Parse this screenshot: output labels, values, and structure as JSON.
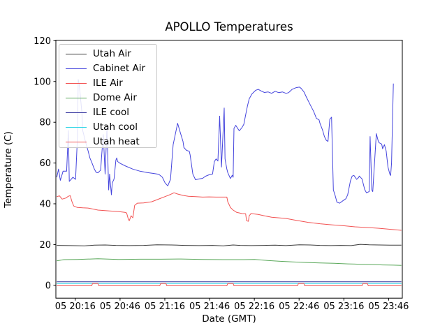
{
  "window": {
    "background": "#ffffff"
  },
  "chart_data": {
    "type": "line",
    "title": "APOLLO Temperatures",
    "xlabel": "Date (GMT)",
    "ylabel": "Temperature (C)",
    "grid": false,
    "legend_position": "upper left",
    "x_unit": "decimal hours GMT on day 05",
    "xlim": [
      20.05,
      23.92
    ],
    "ylim": [
      -6.3,
      120.3
    ],
    "x_ticks": [
      {
        "value": 20.267,
        "label": "05 20:16"
      },
      {
        "value": 20.767,
        "label": "05 20:46"
      },
      {
        "value": 21.267,
        "label": "05 21:16"
      },
      {
        "value": 21.767,
        "label": "05 21:46"
      },
      {
        "value": 22.267,
        "label": "05 22:16"
      },
      {
        "value": 22.767,
        "label": "05 22:46"
      },
      {
        "value": 23.267,
        "label": "05 23:16"
      },
      {
        "value": 23.767,
        "label": "05 23:46"
      }
    ],
    "y_ticks": [
      {
        "value": 0,
        "label": "0"
      },
      {
        "value": 20,
        "label": "20"
      },
      {
        "value": 40,
        "label": "40"
      },
      {
        "value": 60,
        "label": "60"
      },
      {
        "value": 80,
        "label": "80"
      },
      {
        "value": 100,
        "label": "100"
      },
      {
        "value": 120,
        "label": "120"
      }
    ],
    "series": [
      {
        "name": "Utah Air",
        "color": "#3a3a3a",
        "points": [
          [
            20.06,
            19.6
          ],
          [
            20.21,
            19.5
          ],
          [
            20.37,
            19.4
          ],
          [
            20.48,
            19.7
          ],
          [
            20.6,
            19.8
          ],
          [
            20.72,
            19.6
          ],
          [
            20.87,
            19.5
          ],
          [
            21.03,
            19.6
          ],
          [
            21.18,
            19.9
          ],
          [
            21.34,
            19.8
          ],
          [
            21.49,
            19.6
          ],
          [
            21.65,
            19.5
          ],
          [
            21.8,
            19.6
          ],
          [
            21.92,
            19.4
          ],
          [
            22.03,
            19.8
          ],
          [
            22.11,
            19.6
          ],
          [
            22.23,
            19.5
          ],
          [
            22.38,
            19.6
          ],
          [
            22.5,
            19.7
          ],
          [
            22.62,
            19.5
          ],
          [
            22.77,
            19.9
          ],
          [
            22.89,
            19.8
          ],
          [
            23.0,
            19.6
          ],
          [
            23.12,
            19.5
          ],
          [
            23.23,
            19.6
          ],
          [
            23.35,
            19.5
          ],
          [
            23.45,
            20.1
          ],
          [
            23.55,
            19.9
          ],
          [
            23.66,
            19.8
          ],
          [
            23.78,
            19.7
          ],
          [
            23.91,
            19.7
          ]
        ]
      },
      {
        "name": "Cabinet Air",
        "color": "#4444dd",
        "points": [
          [
            20.06,
            53
          ],
          [
            20.08,
            57
          ],
          [
            20.1,
            51.5
          ],
          [
            20.13,
            56
          ],
          [
            20.17,
            56
          ],
          [
            20.19,
            76
          ],
          [
            20.2,
            51
          ],
          [
            20.24,
            53
          ],
          [
            20.27,
            52
          ],
          [
            20.29,
            72
          ],
          [
            20.3,
            101
          ],
          [
            20.31,
            99
          ],
          [
            20.34,
            85
          ],
          [
            20.35,
            76
          ],
          [
            20.38,
            70.6
          ],
          [
            20.41,
            66
          ],
          [
            20.43,
            62.5
          ],
          [
            20.45,
            60.4
          ],
          [
            20.48,
            57
          ],
          [
            20.5,
            55.4
          ],
          [
            20.52,
            55.2
          ],
          [
            20.55,
            56.5
          ],
          [
            20.56,
            63
          ],
          [
            20.58,
            74
          ],
          [
            20.6,
            54.6
          ],
          [
            20.62,
            77.8
          ],
          [
            20.64,
            46.8
          ],
          [
            20.65,
            54.6
          ],
          [
            20.67,
            44.4
          ],
          [
            20.68,
            50.2
          ],
          [
            20.7,
            52.2
          ],
          [
            20.72,
            61.4
          ],
          [
            20.73,
            62.5
          ],
          [
            20.74,
            60.7
          ],
          [
            20.77,
            59.8
          ],
          [
            20.83,
            58.5
          ],
          [
            20.91,
            57
          ],
          [
            20.99,
            56
          ],
          [
            21.07,
            55.3
          ],
          [
            21.14,
            54.9
          ],
          [
            21.2,
            54.5
          ],
          [
            21.24,
            53
          ],
          [
            21.27,
            50.2
          ],
          [
            21.3,
            48.8
          ],
          [
            21.33,
            52
          ],
          [
            21.36,
            69
          ],
          [
            21.41,
            79.5
          ],
          [
            21.44,
            75
          ],
          [
            21.47,
            70.6
          ],
          [
            21.48,
            67.6
          ],
          [
            21.51,
            66.2
          ],
          [
            21.54,
            65.8
          ],
          [
            21.55,
            64
          ],
          [
            21.58,
            54.6
          ],
          [
            21.61,
            51.8
          ],
          [
            21.65,
            52.2
          ],
          [
            21.69,
            52.5
          ],
          [
            21.72,
            53.5
          ],
          [
            21.76,
            54.2
          ],
          [
            21.8,
            54.6
          ],
          [
            21.82,
            60.7
          ],
          [
            21.84,
            62
          ],
          [
            21.86,
            61
          ],
          [
            21.88,
            83
          ],
          [
            21.9,
            58
          ],
          [
            21.93,
            87
          ],
          [
            21.94,
            62
          ],
          [
            21.96,
            57
          ],
          [
            21.97,
            55.3
          ],
          [
            22.0,
            52.4
          ],
          [
            22.02,
            54
          ],
          [
            22.03,
            53
          ],
          [
            22.04,
            77
          ],
          [
            22.06,
            78.5
          ],
          [
            22.08,
            77
          ],
          [
            22.1,
            75.8
          ],
          [
            22.13,
            77.5
          ],
          [
            22.15,
            79
          ],
          [
            22.17,
            83.6
          ],
          [
            22.19,
            88
          ],
          [
            22.21,
            91.5
          ],
          [
            22.24,
            93.9
          ],
          [
            22.28,
            95.6
          ],
          [
            22.31,
            96.2
          ],
          [
            22.34,
            95.4
          ],
          [
            22.38,
            94.6
          ],
          [
            22.42,
            94.9
          ],
          [
            22.46,
            94.2
          ],
          [
            22.5,
            95.2
          ],
          [
            22.54,
            94.5
          ],
          [
            22.58,
            94.9
          ],
          [
            22.62,
            94.2
          ],
          [
            22.65,
            94.5
          ],
          [
            22.69,
            96.2
          ],
          [
            22.73,
            96.9
          ],
          [
            22.77,
            97.3
          ],
          [
            22.79,
            96.6
          ],
          [
            22.82,
            95
          ],
          [
            22.85,
            92.2
          ],
          [
            22.89,
            88.7
          ],
          [
            22.93,
            85.3
          ],
          [
            22.96,
            81.9
          ],
          [
            22.99,
            81.2
          ],
          [
            23.0,
            79.5
          ],
          [
            23.03,
            76.1
          ],
          [
            23.05,
            73
          ],
          [
            23.07,
            71.2
          ],
          [
            23.09,
            70.6
          ],
          [
            23.11,
            81.5
          ],
          [
            23.13,
            82.5
          ],
          [
            23.15,
            46.8
          ],
          [
            23.17,
            44
          ],
          [
            23.19,
            40.8
          ],
          [
            23.22,
            40.3
          ],
          [
            23.26,
            41.6
          ],
          [
            23.29,
            42.5
          ],
          [
            23.31,
            44.4
          ],
          [
            23.34,
            51.2
          ],
          [
            23.36,
            53.6
          ],
          [
            23.38,
            53.9
          ],
          [
            23.41,
            52
          ],
          [
            23.43,
            52.8
          ],
          [
            23.44,
            53.6
          ],
          [
            23.47,
            52.2
          ],
          [
            23.5,
            47
          ],
          [
            23.52,
            45.4
          ],
          [
            23.55,
            46
          ],
          [
            23.56,
            73
          ],
          [
            23.58,
            46.8
          ],
          [
            23.59,
            46
          ],
          [
            23.63,
            74.4
          ],
          [
            23.65,
            71
          ],
          [
            23.66,
            70
          ],
          [
            23.69,
            69.3
          ],
          [
            23.7,
            67
          ],
          [
            23.72,
            69
          ],
          [
            23.74,
            65.9
          ],
          [
            23.76,
            58
          ],
          [
            23.78,
            54.6
          ],
          [
            23.79,
            53.9
          ],
          [
            23.8,
            60
          ],
          [
            23.82,
            99
          ]
        ]
      },
      {
        "name": "ILE Air",
        "color": "#f25252",
        "points": [
          [
            20.06,
            43.5
          ],
          [
            20.09,
            43.9
          ],
          [
            20.12,
            42.3
          ],
          [
            20.16,
            42.8
          ],
          [
            20.19,
            43.7
          ],
          [
            20.21,
            44
          ],
          [
            20.23,
            41
          ],
          [
            20.24,
            39.9
          ],
          [
            20.25,
            38.9
          ],
          [
            20.29,
            38.2
          ],
          [
            20.35,
            38
          ],
          [
            20.41,
            37.9
          ],
          [
            20.52,
            36.9
          ],
          [
            20.65,
            36.5
          ],
          [
            20.75,
            36.2
          ],
          [
            20.82,
            35.8
          ],
          [
            20.84,
            35.5
          ],
          [
            20.86,
            32.4
          ],
          [
            20.87,
            31.7
          ],
          [
            20.89,
            34.1
          ],
          [
            20.91,
            33.1
          ],
          [
            20.93,
            39.2
          ],
          [
            20.96,
            40.3
          ],
          [
            21.03,
            40.4
          ],
          [
            21.12,
            41
          ],
          [
            21.22,
            42.7
          ],
          [
            21.28,
            43.7
          ],
          [
            21.33,
            44.6
          ],
          [
            21.37,
            45.4
          ],
          [
            21.41,
            44.8
          ],
          [
            21.47,
            44.1
          ],
          [
            21.53,
            43.7
          ],
          [
            21.61,
            43.5
          ],
          [
            21.69,
            43.3
          ],
          [
            21.76,
            43.4
          ],
          [
            21.84,
            43.3
          ],
          [
            21.96,
            43.3
          ],
          [
            21.97,
            41
          ],
          [
            21.99,
            39.2
          ],
          [
            22.0,
            38.2
          ],
          [
            22.03,
            36.9
          ],
          [
            22.07,
            35.8
          ],
          [
            22.13,
            35.2
          ],
          [
            22.17,
            35.1
          ],
          [
            22.18,
            31.7
          ],
          [
            22.2,
            31.4
          ],
          [
            22.21,
            34.1
          ],
          [
            22.23,
            35.2
          ],
          [
            22.27,
            35
          ],
          [
            22.31,
            34.8
          ],
          [
            22.38,
            34.1
          ],
          [
            22.46,
            33.4
          ],
          [
            22.54,
            33.1
          ],
          [
            22.62,
            32.8
          ],
          [
            22.73,
            31.9
          ],
          [
            22.87,
            30.9
          ],
          [
            23.0,
            30.2
          ],
          [
            23.13,
            29.7
          ],
          [
            23.27,
            29.2
          ],
          [
            23.39,
            28.7
          ],
          [
            23.51,
            28.4
          ],
          [
            23.65,
            28
          ],
          [
            23.78,
            27.5
          ],
          [
            23.91,
            27
          ]
        ]
      },
      {
        "name": "Dome Air",
        "color": "#5aa85a",
        "points": [
          [
            20.06,
            12
          ],
          [
            20.14,
            12.6
          ],
          [
            20.29,
            12.7
          ],
          [
            20.52,
            13
          ],
          [
            20.75,
            12.7
          ],
          [
            20.99,
            12.8
          ],
          [
            21.22,
            12.8
          ],
          [
            21.45,
            12.9
          ],
          [
            21.69,
            12.7
          ],
          [
            21.92,
            12.6
          ],
          [
            22.15,
            12.6
          ],
          [
            22.27,
            12.7
          ],
          [
            22.38,
            12.3
          ],
          [
            22.54,
            11.8
          ],
          [
            22.69,
            11.5
          ],
          [
            22.85,
            11.2
          ],
          [
            23.0,
            11
          ],
          [
            23.16,
            10.8
          ],
          [
            23.31,
            10.5
          ],
          [
            23.47,
            10.3
          ],
          [
            23.58,
            10.2
          ],
          [
            23.7,
            10
          ],
          [
            23.82,
            9.9
          ],
          [
            23.91,
            9.8
          ]
        ]
      },
      {
        "name": "ILE cool",
        "color": "#30309c",
        "points": [
          [
            20.06,
            1.7
          ],
          [
            21.0,
            1.7
          ],
          [
            22.0,
            1.7
          ],
          [
            23.0,
            1.7
          ],
          [
            23.91,
            1.7
          ]
        ]
      },
      {
        "name": "Utah cool",
        "color": "#33d6e6",
        "points": [
          [
            20.06,
            0.9
          ],
          [
            21.0,
            0.9
          ],
          [
            22.0,
            0.9
          ],
          [
            23.0,
            0.9
          ],
          [
            23.91,
            0.9
          ]
        ]
      },
      {
        "name": "Utah heat",
        "color": "#f25252",
        "points": [
          [
            20.06,
            -0.2
          ],
          [
            20.45,
            -0.2
          ],
          [
            20.46,
            0.9
          ],
          [
            20.52,
            0.9
          ],
          [
            20.53,
            -0.2
          ],
          [
            21.21,
            -0.2
          ],
          [
            21.22,
            0.9
          ],
          [
            21.28,
            0.9
          ],
          [
            21.29,
            -0.2
          ],
          [
            21.96,
            -0.2
          ],
          [
            21.97,
            0.9
          ],
          [
            22.03,
            0.9
          ],
          [
            22.04,
            -0.2
          ],
          [
            22.75,
            -0.2
          ],
          [
            22.76,
            0.9
          ],
          [
            22.82,
            0.9
          ],
          [
            22.83,
            -0.2
          ],
          [
            23.47,
            -0.2
          ],
          [
            23.48,
            0.9
          ],
          [
            23.53,
            0.9
          ],
          [
            23.54,
            -0.2
          ],
          [
            23.91,
            -0.2
          ]
        ]
      }
    ]
  }
}
